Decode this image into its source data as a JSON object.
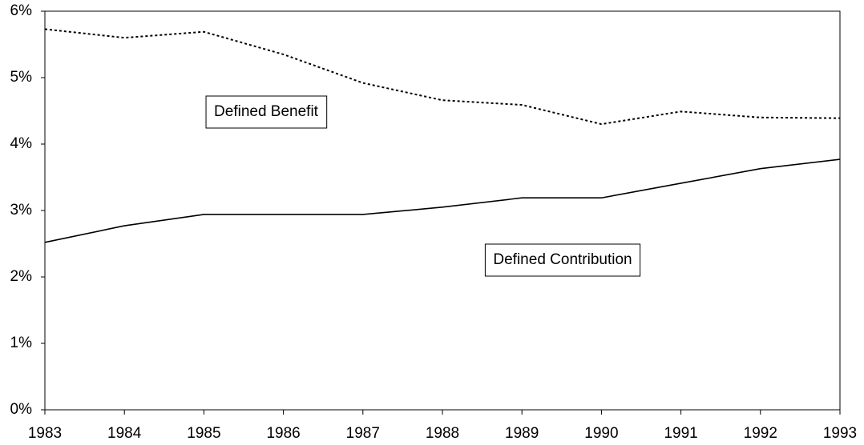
{
  "chart_data": {
    "type": "line",
    "categories": [
      "1983",
      "1984",
      "1985",
      "1986",
      "1987",
      "1988",
      "1989",
      "1990",
      "1991",
      "1992",
      "1993"
    ],
    "series": [
      {
        "name": "Defined Benefit",
        "color": "#000000",
        "dash": "dotted",
        "values": [
          5.73,
          5.6,
          5.69,
          5.35,
          4.92,
          4.66,
          4.59,
          4.3,
          4.49,
          4.4,
          4.39
        ]
      },
      {
        "name": "Defined Contribution",
        "color": "#000000",
        "dash": "solid",
        "values": [
          2.52,
          2.77,
          2.94,
          2.94,
          2.94,
          3.05,
          3.19,
          3.19,
          3.41,
          3.63,
          3.77
        ]
      }
    ],
    "ylim": [
      0,
      6
    ],
    "yticks": [
      {
        "value": 0,
        "label": "0%"
      },
      {
        "value": 1,
        "label": "1%"
      },
      {
        "value": 2,
        "label": "2%"
      },
      {
        "value": 3,
        "label": "3%"
      },
      {
        "value": 4,
        "label": "4%"
      },
      {
        "value": 5,
        "label": "5%"
      },
      {
        "value": 6,
        "label": "6%"
      }
    ],
    "grid": false
  }
}
